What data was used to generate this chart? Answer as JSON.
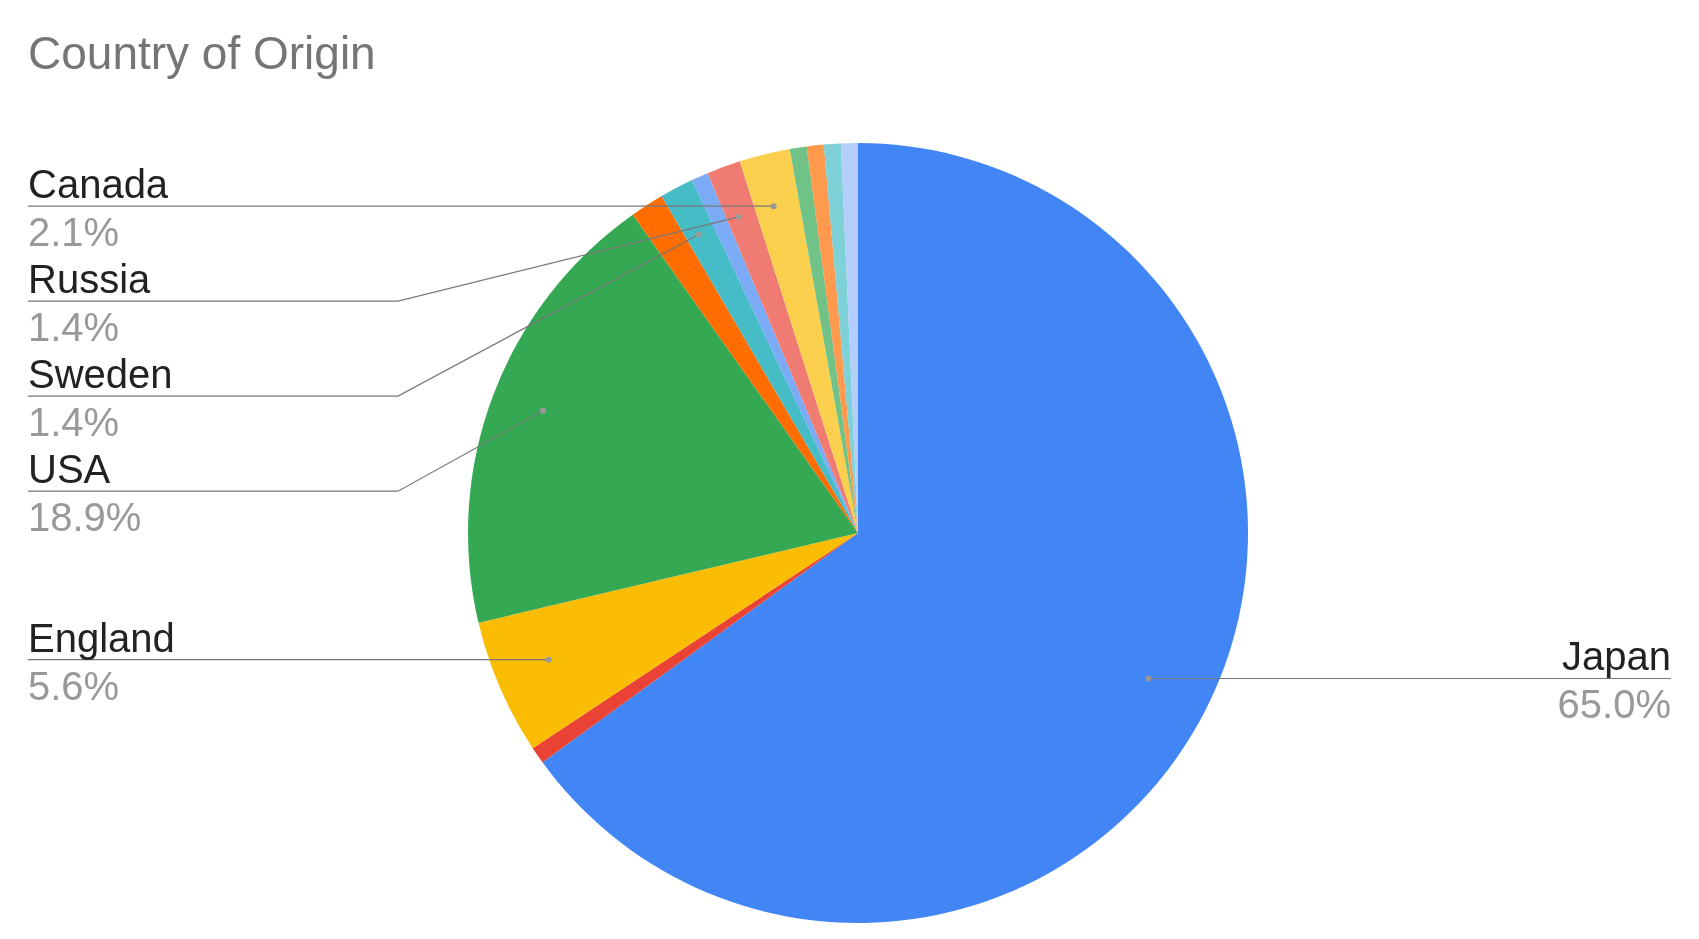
{
  "chart_data": {
    "type": "pie",
    "title": "Country of Origin",
    "categories": [
      "Japan",
      null,
      "England",
      "USA",
      null,
      "Sweden",
      null,
      "Russia",
      "Canada",
      null,
      null,
      null,
      null
    ],
    "values": [
      65.0,
      0.7,
      5.6,
      18.9,
      1.4,
      1.4,
      0.7,
      1.4,
      2.1,
      0.7,
      0.7,
      0.7,
      0.7
    ],
    "value_labels": [
      "65.0%",
      null,
      "5.6%",
      "18.9%",
      null,
      "1.4%",
      null,
      "1.4%",
      "2.1%",
      null,
      null,
      null,
      null
    ],
    "colors": [
      "#4285f4",
      "#ea4335",
      "#fbbc04",
      "#34a853",
      "#ff6d01",
      "#46bdc6",
      "#7baaf7",
      "#f07b72",
      "#fcd04f",
      "#71c287",
      "#ff994d",
      "#7ed1d7",
      "#b3cefb"
    ],
    "legend": false
  }
}
